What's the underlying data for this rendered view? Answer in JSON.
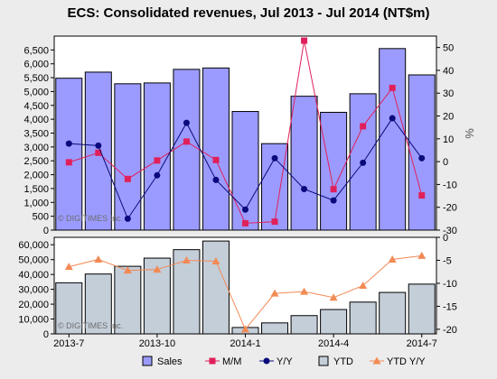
{
  "title": "ECS: Consolidated revenues, Jul 2013 - Jul 2014 (NT$m)",
  "watermark": "© DIGITIMES Inc.",
  "right_axis_unit": "%",
  "colors": {
    "sales": "#9b9bff",
    "ytd": "#c4ced9",
    "mm": "#e0205a",
    "yy": "#0a0a7c",
    "ytd_yy": "#f28a55",
    "background": "#ececec",
    "plot": "#ffffff"
  },
  "chart_data": [
    {
      "type": "bar",
      "categories": [
        "Jul-13",
        "Aug-13",
        "Sep-13",
        "Oct-13",
        "Nov-13",
        "Dec-13",
        "Jan-14",
        "Feb-14",
        "Mar-14",
        "Apr-14",
        "May-14",
        "Jun-14",
        "Jul-14"
      ],
      "x_tick_labels": [
        "2013-7",
        "2013-10",
        "2014-1",
        "2014-4",
        "2014-7"
      ],
      "series": [
        {
          "name": "Sales",
          "type": "bar",
          "axis": "left",
          "values": [
            5480,
            5700,
            5280,
            5310,
            5800,
            5850,
            4280,
            3120,
            4830,
            4250,
            4920,
            6550,
            5600
          ]
        },
        {
          "name": "M/M",
          "type": "line",
          "axis": "right",
          "values": [
            -0.3,
            3.9,
            -7.6,
            0.5,
            8.8,
            0.7,
            -27.0,
            -26.3,
            53.0,
            -12.1,
            15.5,
            32.3,
            -14.8
          ]
        },
        {
          "name": "Y/Y",
          "type": "line",
          "axis": "right",
          "values": [
            7.9,
            7.0,
            -25.0,
            -6.0,
            17.0,
            -8.0,
            -21.0,
            1.5,
            -12.0,
            -17.0,
            -0.5,
            19.0,
            1.5
          ]
        }
      ],
      "ylim_left": [
        0,
        7000
      ],
      "yticks_left": [
        0,
        500,
        1000,
        1500,
        2000,
        2500,
        3000,
        3500,
        4000,
        4500,
        5000,
        5500,
        6000,
        6500
      ],
      "ylim_right": [
        -30,
        55
      ],
      "yticks_right": [
        -30,
        -20,
        -10,
        0,
        10,
        20,
        30,
        40,
        50
      ],
      "grid": false,
      "legend": "bottom"
    },
    {
      "type": "bar",
      "categories": [
        "Jul-13",
        "Aug-13",
        "Sep-13",
        "Oct-13",
        "Nov-13",
        "Dec-13",
        "Jan-14",
        "Feb-14",
        "Mar-14",
        "Apr-14",
        "May-14",
        "Jun-14",
        "Jul-14"
      ],
      "series": [
        {
          "name": "YTD",
          "type": "bar",
          "axis": "left",
          "values": [
            34400,
            40300,
            45500,
            51000,
            56700,
            62500,
            4300,
            7400,
            12300,
            16400,
            21400,
            27900,
            33500
          ]
        },
        {
          "name": "YTD Y/Y",
          "type": "line",
          "axis": "right",
          "values": [
            -6.4,
            -4.8,
            -7.2,
            -7.0,
            -5.0,
            -5.2,
            -20.0,
            -12.2,
            -11.8,
            -13.1,
            -10.5,
            -4.8,
            -4.0
          ]
        }
      ],
      "ylim_left": [
        0,
        65000
      ],
      "yticks_left": [
        0,
        10000,
        20000,
        30000,
        40000,
        50000,
        60000
      ],
      "ylim_right": [
        -21,
        0
      ],
      "yticks_right": [
        -20,
        -15,
        -10,
        -5,
        0
      ],
      "grid": false
    }
  ],
  "legend": [
    {
      "label": "Sales",
      "kind": "bar",
      "color": "#9b9bff"
    },
    {
      "label": "M/M",
      "kind": "square",
      "color": "#e0205a"
    },
    {
      "label": "Y/Y",
      "kind": "circle",
      "color": "#0a0a7c"
    },
    {
      "label": "YTD",
      "kind": "bar",
      "color": "#c4ced9"
    },
    {
      "label": "YTD Y/Y",
      "kind": "triangle",
      "color": "#f28a55"
    }
  ]
}
